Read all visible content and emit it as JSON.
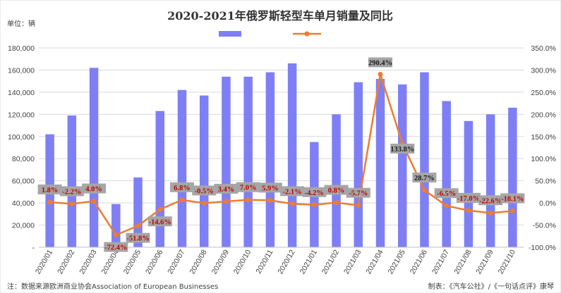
{
  "chart_data": {
    "type": "bar",
    "title": "2020-2021年俄罗斯轻型车单月销量及同比",
    "unit_label": "单位：辆",
    "note": "注：数据来源欧洲商业协会Association of European Businesses",
    "credit": "制表：《汽车公社》/《一句话点评》康琴",
    "categories": [
      "2020/01",
      "2020/02",
      "2020/03",
      "2020/04",
      "2020/05",
      "2020/06",
      "2020/07",
      "2020/08",
      "2020/09",
      "2020/10",
      "2020/11",
      "2020/12",
      "2021/01",
      "2021/02",
      "2021/03",
      "2021/04",
      "2021/05",
      "2021/06",
      "2021/07",
      "2021/08",
      "2021/09",
      "2021/10"
    ],
    "series": [
      {
        "name": "",
        "kind": "bar",
        "axis": "left",
        "values": [
          102000,
          119000,
          162000,
          39000,
          63000,
          123000,
          142000,
          137000,
          154000,
          154000,
          158000,
          166000,
          95000,
          120000,
          149000,
          152000,
          147000,
          158000,
          132000,
          114000,
          120000,
          126000
        ]
      },
      {
        "name": "",
        "kind": "line",
        "axis": "right",
        "values": [
          1.8,
          -2.2,
          4.0,
          -72.4,
          -51.8,
          -14.6,
          6.8,
          -0.5,
          3.4,
          7.0,
          5.9,
          -2.1,
          -4.2,
          0.8,
          -5.7,
          290.4,
          133.8,
          28.7,
          -6.5,
          -17.0,
          -22.6,
          -18.1
        ],
        "labels": [
          "1.8%",
          "-2.2%",
          "4.0%",
          "-72.4%",
          "-51.8%",
          "-14.6%",
          "6.8%",
          "-0.5%",
          "3.4%",
          "7.0%",
          "5.9%",
          "-2.1%",
          "-4.2%",
          "0.8%",
          "-5.7%",
          "290.4%",
          "133.8%",
          "28.7%",
          "-6.5%",
          "-17.0%",
          "-22.6%",
          "-18.1%"
        ]
      }
    ],
    "y_left": {
      "ylim": [
        0,
        180000
      ],
      "ticks": [
        0,
        20000,
        40000,
        60000,
        80000,
        100000,
        120000,
        140000,
        160000,
        180000
      ],
      "tick_labels": [
        "-",
        "20,000",
        "40,000",
        "60,000",
        "80,000",
        "100,000",
        "120,000",
        "140,000",
        "160,000",
        "180,000"
      ]
    },
    "y_right": {
      "ylim": [
        -100,
        350
      ],
      "ticks": [
        -100,
        -50,
        0,
        50,
        100,
        150,
        200,
        250,
        300,
        350
      ],
      "tick_labels": [
        "-100.0%",
        "-50.0%",
        "0.0%",
        "50.0%",
        "100.0%",
        "150.0%",
        "200.0%",
        "250.0%",
        "300.0%",
        "350.0%"
      ]
    },
    "grid": true,
    "legend_position": "top-center",
    "colors": {
      "bar": "#7f7ff5",
      "line": "#ed7d31",
      "grid": "#d9d9d9",
      "label_box": "#a6a6a6",
      "label_text": "#c00000",
      "label_text_dark": "#1a1a1a"
    }
  }
}
